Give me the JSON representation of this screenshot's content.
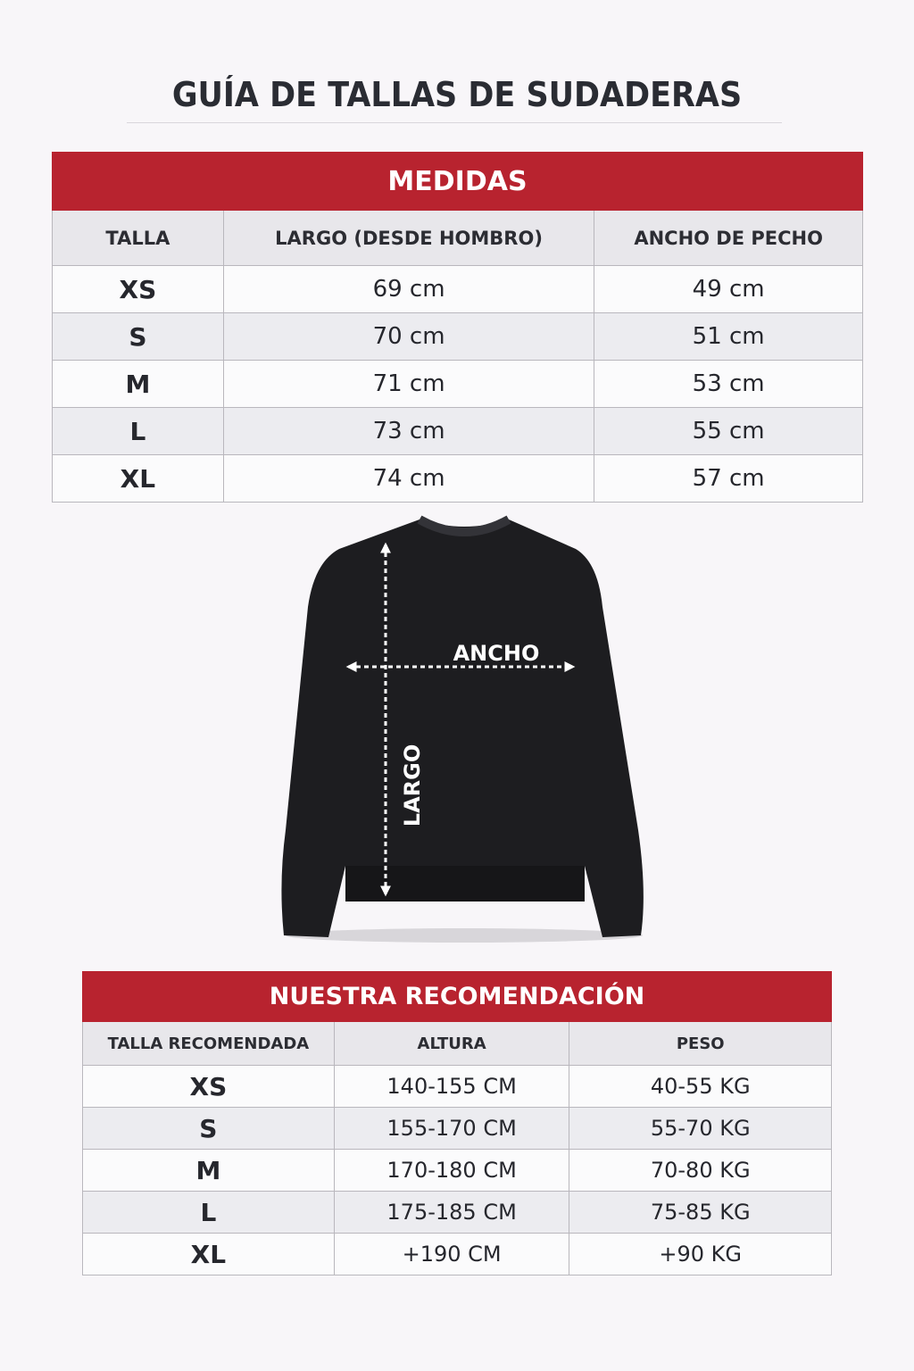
{
  "title": "GUÍA DE TALLAS DE SUDADERAS",
  "measures": {
    "heading": "MEDIDAS",
    "columns": [
      "TALLA",
      "LARGO (DESDE HOMBRO)",
      "ANCHO DE PECHO"
    ],
    "rows": [
      {
        "size": "XS",
        "length": "69 cm",
        "chest": "49 cm"
      },
      {
        "size": "S",
        "length": "70 cm",
        "chest": "51 cm"
      },
      {
        "size": "M",
        "length": "71 cm",
        "chest": "53 cm"
      },
      {
        "size": "L",
        "length": "73 cm",
        "chest": "55 cm"
      },
      {
        "size": "XL",
        "length": "74 cm",
        "chest": "57 cm"
      }
    ]
  },
  "diagram": {
    "width_label": "ANCHO",
    "length_label": "LARGO"
  },
  "recommendation": {
    "heading": "NUESTRA RECOMENDACIÓN",
    "columns": [
      "TALLA RECOMENDADA",
      "ALTURA",
      "PESO"
    ],
    "rows": [
      {
        "size": "XS",
        "height": "140-155 CM",
        "weight": "40-55 KG"
      },
      {
        "size": "S",
        "height": "155-170 CM",
        "weight": "55-70 KG"
      },
      {
        "size": "M",
        "height": "170-180 CM",
        "weight": "70-80 KG"
      },
      {
        "size": "L",
        "height": "175-185 CM",
        "weight": "75-85 KG"
      },
      {
        "size": "XL",
        "height": "+190 CM",
        "weight": "+90 KG"
      }
    ]
  },
  "colors": {
    "accent": "#b8232f",
    "garment": "#1c1c1f"
  }
}
